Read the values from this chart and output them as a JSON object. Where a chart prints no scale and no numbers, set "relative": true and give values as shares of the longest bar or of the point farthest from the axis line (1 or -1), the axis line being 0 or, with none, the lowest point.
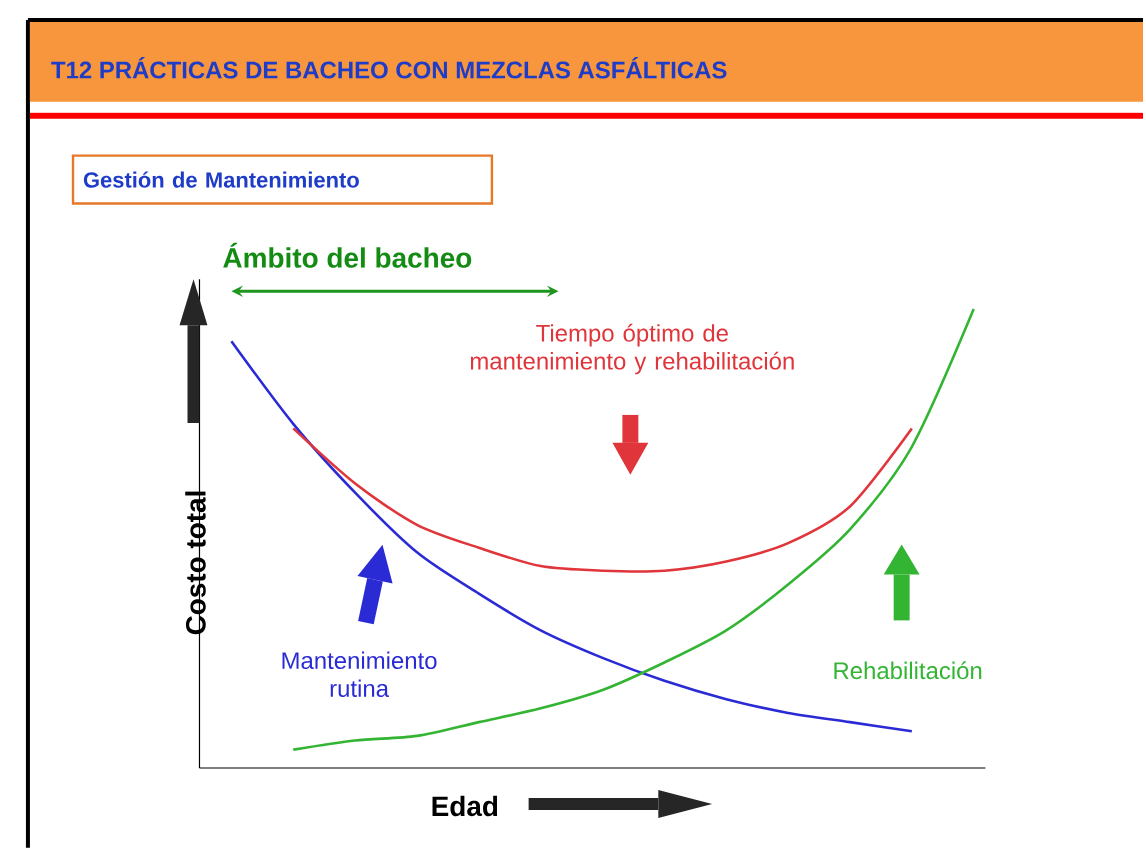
{
  "chart_data": {
    "type": "line",
    "title": "T12 PRÁCTICAS DE BACHEO CON MEZCLAS ASFÁLTICAS",
    "subtitle": "Gestión de Mantenimiento",
    "xlabel": "Edad",
    "ylabel": "Costo total",
    "relative": true,
    "categories": [
      null,
      null,
      null,
      null,
      null,
      null,
      null,
      null,
      null,
      null,
      null,
      null,
      null
    ],
    "series": [
      {
        "name": "Mantenimiento rutina",
        "color": "#2b2bd6",
        "values": [
          0.93,
          0.75,
          0.6,
          0.47,
          0.38,
          0.3,
          0.24,
          0.19,
          0.15,
          0.12,
          0.1,
          0.08,
          null
        ]
      },
      {
        "color": "#e0353a",
        "values": [
          null,
          0.74,
          0.62,
          0.53,
          0.48,
          0.44,
          0.43,
          0.43,
          0.45,
          0.49,
          0.57,
          0.74,
          null
        ]
      },
      {
        "name": "Rehabilitación",
        "color": "#33b533",
        "values": [
          null,
          0.04,
          0.06,
          0.07,
          0.1,
          0.13,
          0.17,
          0.23,
          0.3,
          0.4,
          0.52,
          0.7,
          1.0
        ]
      }
    ],
    "annotations": [
      "Ámbito del bacheo",
      "Tiempo óptimo de mantenimiento y rehabilitación"
    ]
  }
}
